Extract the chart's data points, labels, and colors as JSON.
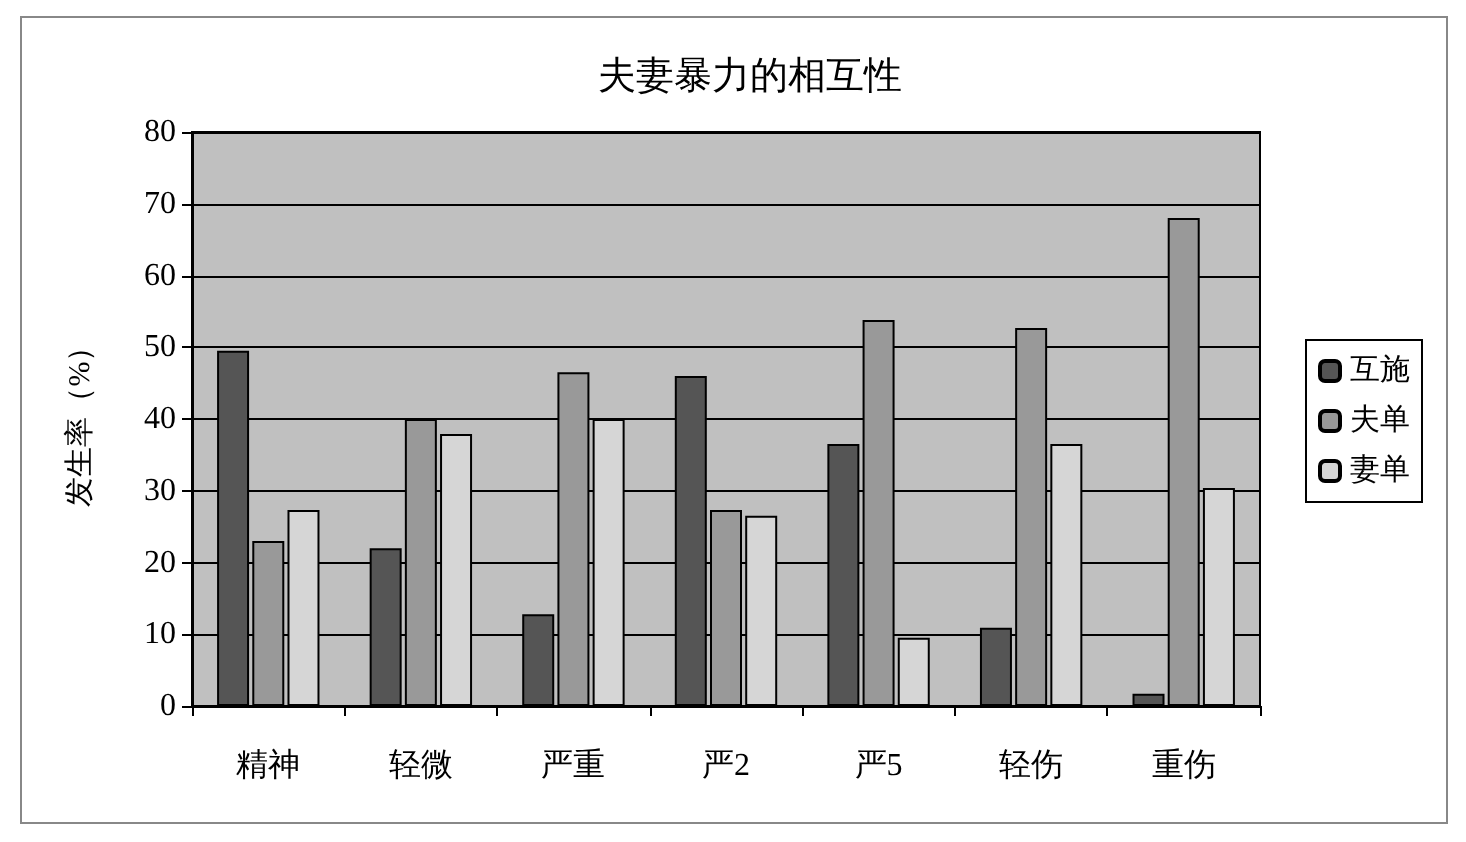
{
  "chart_data": {
    "type": "bar",
    "title": "夫妻暴力的相互性",
    "ylabel": "发生率（%）",
    "categories": [
      "精神",
      "轻微",
      "严重",
      "严2",
      "严5",
      "轻伤",
      "重伤"
    ],
    "series": [
      {
        "name": "互施",
        "color": "#555555",
        "values": [
          49.5,
          22,
          12.8,
          46,
          36.5,
          10.9,
          1.7
        ]
      },
      {
        "name": "夫单",
        "color": "#999999",
        "values": [
          23,
          40,
          46.5,
          27.3,
          53.8,
          52.7,
          68
        ]
      },
      {
        "name": "妻单",
        "color": "#d6d6d6",
        "values": [
          27.3,
          37.9,
          40,
          26.5,
          9.5,
          36.5,
          30.4
        ]
      }
    ],
    "ylim": [
      0,
      80
    ],
    "yticks": [
      0,
      10,
      20,
      30,
      40,
      50,
      60,
      70,
      80
    ],
    "grid": "y",
    "legend": "right"
  }
}
